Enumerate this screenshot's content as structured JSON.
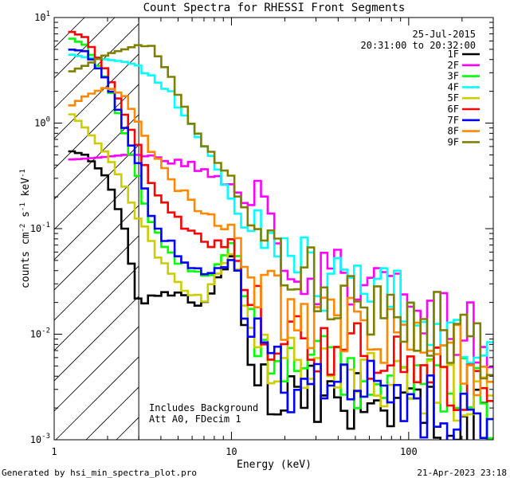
{
  "chart_data": {
    "type": "line",
    "title": "Count Spectra for RHESSI Front Segments",
    "xlabel": "Energy (keV)",
    "ylabel": "counts cm-2 s-1 keV-1",
    "ylabel_parts": [
      "counts cm",
      "-2",
      " s",
      "-1",
      " keV",
      "-1"
    ],
    "x_scale": "log",
    "y_scale": "log",
    "xlim": [
      1,
      300
    ],
    "ylim": [
      0.001,
      10
    ],
    "x_ticks": [
      {
        "value": 1,
        "label": "1"
      },
      {
        "value": 10,
        "label": "10"
      },
      {
        "value": 100,
        "label": "100"
      }
    ],
    "y_ticks": [
      {
        "value": 0.001,
        "base": "10",
        "exp": "-3"
      },
      {
        "value": 0.01,
        "base": "10",
        "exp": "-2"
      },
      {
        "value": 0.1,
        "base": "10",
        "exp": "-1"
      },
      {
        "value": 1,
        "base": "10",
        "exp": "0"
      },
      {
        "value": 10,
        "base": "10",
        "exp": "1"
      }
    ],
    "date": "25-Jul-2015",
    "time_range": "20:31:00 to 20:32:00",
    "annotations": [
      "Includes Background",
      "Att A0, FDecim 1"
    ],
    "footer_left": "Generated by hsi_min_spectra_plot.pro",
    "footer_right": "21-Apr-2023 23:18",
    "hatched_region_xmax": 3,
    "step_plot": true,
    "bin_width_log": 0.0375,
    "series": [
      {
        "name": "1F",
        "color": "#000000",
        "x": [
          1.2,
          1.5,
          2,
          2.5,
          3,
          3.5,
          4,
          5,
          6,
          7,
          8,
          9,
          10,
          11,
          12,
          13,
          15,
          20,
          30,
          40,
          60,
          80,
          100,
          150,
          200,
          250,
          300
        ],
        "values": [
          0.55,
          0.5,
          0.3,
          0.1,
          0.02,
          0.022,
          0.025,
          0.023,
          0.02,
          0.02,
          0.03,
          0.04,
          0.055,
          0.04,
          0.01,
          0.005,
          0.004,
          0.003,
          0.003,
          0.0025,
          0.0022,
          0.002,
          0.002,
          0.0018,
          0.0016,
          0.0014,
          0.0012
        ]
      },
      {
        "name": "2F",
        "color": "#ff00ff",
        "x": [
          1.2,
          1.5,
          2,
          2.5,
          3,
          4,
          5,
          6,
          7,
          8,
          10,
          12,
          15,
          20,
          30,
          40,
          60,
          80,
          100,
          150,
          200,
          250,
          300
        ],
        "values": [
          0.45,
          0.46,
          0.48,
          0.5,
          0.5,
          0.45,
          0.42,
          0.4,
          0.35,
          0.32,
          0.25,
          0.18,
          0.12,
          0.07,
          0.04,
          0.035,
          0.03,
          0.025,
          0.02,
          0.015,
          0.012,
          0.009,
          0.007
        ]
      },
      {
        "name": "3F",
        "color": "#00ff00",
        "x": [
          1.2,
          1.5,
          2,
          2.5,
          3,
          3.5,
          4,
          5,
          6,
          7,
          8,
          9,
          10,
          11,
          12,
          15,
          20,
          30,
          40,
          60,
          80,
          100,
          150,
          200,
          250,
          300
        ],
        "values": [
          6.5,
          5.5,
          2.5,
          0.8,
          0.3,
          0.12,
          0.08,
          0.05,
          0.04,
          0.035,
          0.04,
          0.06,
          0.07,
          0.05,
          0.02,
          0.01,
          0.006,
          0.005,
          0.004,
          0.004,
          0.004,
          0.0035,
          0.003,
          0.003,
          0.0025,
          0.002
        ]
      },
      {
        "name": "4F",
        "color": "#00ffff",
        "x": [
          1.2,
          1.5,
          2,
          2.5,
          3,
          3.5,
          4,
          5,
          6,
          7,
          8,
          10,
          12,
          15,
          20,
          30,
          40,
          60,
          80,
          100,
          150,
          200,
          250,
          300
        ],
        "values": [
          4.5,
          4.2,
          4,
          3.8,
          3.5,
          3,
          2.5,
          1.5,
          1,
          0.6,
          0.4,
          0.18,
          0.1,
          0.07,
          0.05,
          0.035,
          0.03,
          0.025,
          0.02,
          0.018,
          0.014,
          0.012,
          0.01,
          0.008
        ]
      },
      {
        "name": "5F",
        "color": "#cccc00",
        "x": [
          1.2,
          1.5,
          2,
          2.5,
          3,
          3.5,
          4,
          5,
          6,
          7,
          8,
          9,
          10,
          11,
          12,
          15,
          20,
          30,
          40,
          60,
          80,
          100,
          150,
          200,
          250,
          300
        ],
        "values": [
          1.3,
          0.9,
          0.5,
          0.25,
          0.12,
          0.08,
          0.05,
          0.03,
          0.025,
          0.022,
          0.03,
          0.05,
          0.06,
          0.04,
          0.015,
          0.008,
          0.006,
          0.005,
          0.004,
          0.004,
          0.0035,
          0.003,
          0.003,
          0.0025,
          0.002,
          0.002
        ]
      },
      {
        "name": "6F",
        "color": "#ff0000",
        "x": [
          1.2,
          1.5,
          2,
          2.5,
          3,
          3.5,
          4,
          5,
          6,
          7,
          8,
          9,
          10,
          11,
          12,
          15,
          20,
          30,
          40,
          60,
          80,
          100,
          150,
          200,
          250,
          300
        ],
        "values": [
          7.5,
          6.5,
          3,
          1.2,
          0.6,
          0.3,
          0.18,
          0.12,
          0.1,
          0.08,
          0.07,
          0.07,
          0.08,
          0.05,
          0.025,
          0.013,
          0.01,
          0.008,
          0.007,
          0.006,
          0.005,
          0.005,
          0.004,
          0.0035,
          0.003,
          0.0025
        ]
      },
      {
        "name": "7F",
        "color": "#0000ff",
        "x": [
          1.2,
          1.5,
          2,
          2.5,
          3,
          3.5,
          4,
          5,
          6,
          7,
          8,
          9,
          10,
          11,
          12,
          15,
          20,
          30,
          40,
          60,
          80,
          100,
          150,
          200,
          250,
          300
        ],
        "values": [
          5,
          4.8,
          2.5,
          0.9,
          0.4,
          0.15,
          0.09,
          0.06,
          0.045,
          0.04,
          0.04,
          0.045,
          0.055,
          0.035,
          0.012,
          0.006,
          0.004,
          0.003,
          0.003,
          0.0028,
          0.0025,
          0.0022,
          0.002,
          0.0018,
          0.0015,
          0.0012
        ]
      },
      {
        "name": "8F",
        "color": "#ff8800",
        "x": [
          1.2,
          1.5,
          2,
          2.5,
          3,
          3.5,
          4,
          5,
          6,
          7,
          8,
          9,
          10,
          11,
          12,
          15,
          20,
          30,
          40,
          60,
          80,
          100,
          150,
          200,
          250,
          300
        ],
        "values": [
          1.4,
          1.8,
          2.2,
          1.8,
          1,
          0.6,
          0.4,
          0.25,
          0.18,
          0.14,
          0.12,
          0.1,
          0.1,
          0.07,
          0.04,
          0.025,
          0.018,
          0.014,
          0.012,
          0.01,
          0.009,
          0.008,
          0.007,
          0.006,
          0.005,
          0.004
        ]
      },
      {
        "name": "9F",
        "color": "#808000",
        "x": [
          1.2,
          1.5,
          2,
          2.5,
          3,
          3.5,
          4,
          5,
          6,
          7,
          8,
          10,
          12,
          15,
          20,
          30,
          40,
          60,
          80,
          100,
          150,
          200,
          250,
          300
        ],
        "values": [
          3,
          3.5,
          4.5,
          5,
          5.5,
          5,
          4,
          2,
          1,
          0.6,
          0.45,
          0.3,
          0.15,
          0.05,
          0.04,
          0.03,
          0.025,
          0.02,
          0.018,
          0.015,
          0.012,
          0.01,
          0.008,
          0.006
        ]
      }
    ]
  }
}
